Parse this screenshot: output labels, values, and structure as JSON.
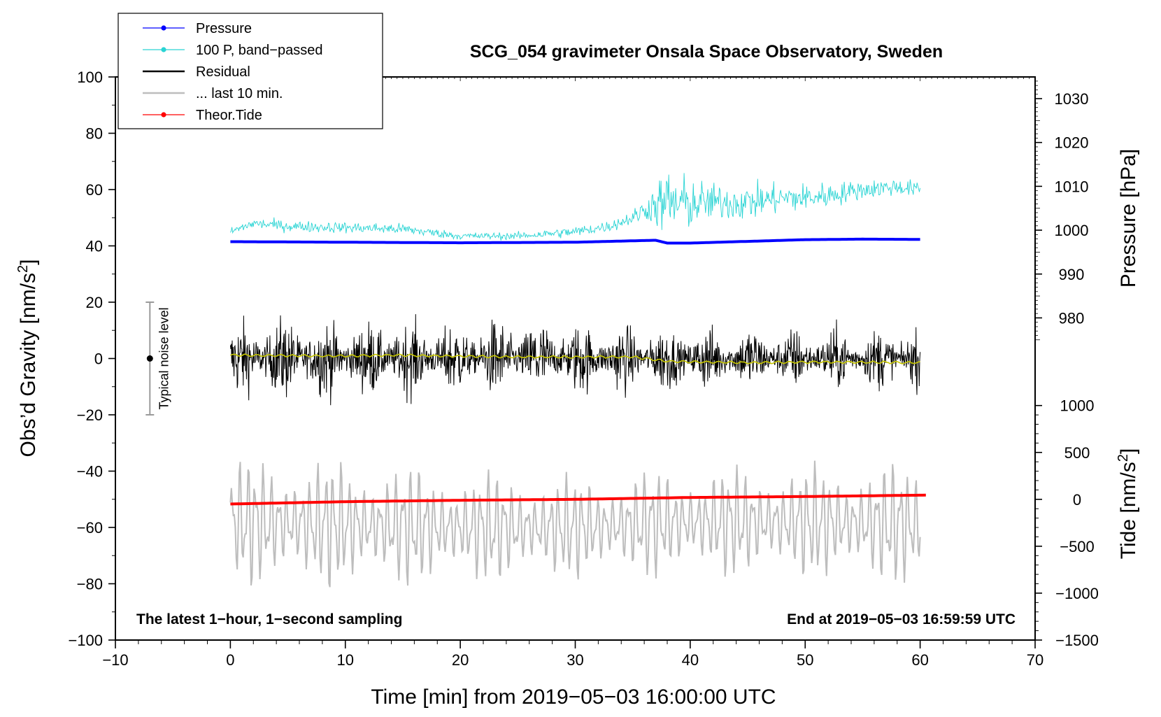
{
  "chart_data": {
    "type": "line",
    "title": "SCG_054 gravimeter Onsala Space Observatory, Sweden",
    "xlabel": "Time [min] from 2019−05−03 16:00:00 UTC",
    "xlim": [
      -10,
      70
    ],
    "xticks": [
      -10,
      0,
      10,
      20,
      30,
      40,
      50,
      60,
      70
    ],
    "xtick_labels": [
      "−10",
      "0",
      "10",
      "20",
      "30",
      "40",
      "50",
      "60",
      "70"
    ],
    "left_axis": {
      "label_main": "Obs’d Gravity [nm/s",
      "label_sup": "2",
      "label_end": "]",
      "ylim": [
        -100,
        100
      ],
      "ticks": [
        -100,
        -80,
        -60,
        -40,
        -20,
        0,
        20,
        40,
        60,
        80,
        100
      ],
      "tick_labels": [
        "−100",
        "−80",
        "−60",
        "−40",
        "−20",
        "0",
        "20",
        "40",
        "60",
        "80",
        "100"
      ]
    },
    "pressure_axis": {
      "label": "Pressure [hPa]",
      "unit_ref": [
        990,
        1030
      ],
      "gravity_ref": [
        30.0,
        92.3
      ],
      "ticks": [
        980,
        990,
        1000,
        1010,
        1020,
        1030
      ],
      "tick_labels": [
        "980",
        "990",
        "1000",
        "1010",
        "1020",
        "1030"
      ]
    },
    "tide_axis": {
      "label_main": "Tide [nm/s",
      "label_sup": "2",
      "label_end": "]",
      "unit_ref": [
        -1500,
        1000
      ],
      "gravity_ref": [
        -100,
        -16.7
      ],
      "ticks": [
        -1500,
        -1000,
        -500,
        0,
        500,
        1000
      ],
      "tick_labels": [
        "−1500",
        "−1000",
        "−500",
        "0",
        "500",
        "1000"
      ]
    },
    "legend": {
      "position": "top-left",
      "entries": [
        {
          "label": "Pressure",
          "color": "#0000ff",
          "style": "line-dot"
        },
        {
          "label": "100 P, band−passed",
          "color": "#2ad4d4",
          "style": "line-dot"
        },
        {
          "label": "Residual",
          "color": "#000000",
          "style": "line"
        },
        {
          "label": "... last 10 min.",
          "color": "#bdbdbd",
          "style": "line"
        },
        {
          "label": "Theor.Tide",
          "color": "#ff0000",
          "style": "line-dot"
        }
      ]
    },
    "noise_bar": {
      "label": "Typical noise level",
      "x": -7,
      "center": 0,
      "low": -20,
      "high": 20
    },
    "annotations": {
      "left": "The latest 1−hour, 1−second sampling",
      "right": "End at 2019−05−03 16:59:59 UTC"
    },
    "series": [
      {
        "name": "Pressure",
        "color": "#0000ff",
        "axis": "left",
        "x": [
          0,
          10,
          20,
          30,
          35,
          37,
          38,
          40,
          45,
          50,
          55,
          60
        ],
        "y": [
          41.5,
          41.3,
          41.1,
          41.3,
          41.8,
          42.0,
          41.0,
          41.0,
          41.6,
          42.2,
          42.4,
          42.3
        ]
      },
      {
        "name": "100 P, band−passed",
        "color": "#2ad4d4",
        "axis": "left",
        "x": [
          0,
          2,
          5,
          10,
          15,
          20,
          25,
          30,
          33,
          35,
          36.5,
          38,
          40,
          42,
          45,
          48,
          50,
          52,
          55,
          58,
          60
        ],
        "y": [
          45,
          48,
          47,
          46.5,
          46,
          43.5,
          43.5,
          45,
          47,
          50,
          54,
          55,
          55,
          55.5,
          55.5,
          57,
          57,
          58,
          60,
          61,
          60
        ],
        "envelope": [
          2,
          3,
          3,
          3,
          3,
          2,
          2,
          3,
          3,
          4,
          8,
          20,
          14,
          10,
          10,
          8,
          8,
          7,
          5,
          5,
          4
        ]
      },
      {
        "name": "Residual",
        "color": "#000000",
        "axis": "left",
        "x": [
          0,
          5,
          10,
          15,
          20,
          25,
          30,
          35,
          40,
          45,
          50,
          55,
          60
        ],
        "y": [
          0,
          0,
          0,
          0,
          0,
          0,
          0,
          0,
          0,
          0,
          0,
          0,
          0
        ],
        "envelope": [
          20,
          22,
          20,
          20,
          19,
          22,
          19,
          18,
          17,
          17,
          16,
          16,
          16
        ]
      },
      {
        "name": "Residual, smoothed",
        "color": "#c8c800",
        "axis": "left",
        "x": [
          0,
          5,
          10,
          15,
          20,
          25,
          30,
          35,
          38,
          40,
          45,
          50,
          55,
          60
        ],
        "y": [
          1.2,
          1.0,
          0.9,
          1.2,
          0.8,
          0.6,
          0.5,
          0.6,
          -1.0,
          -1.2,
          -1.5,
          -1.3,
          -1.3,
          -1.5
        ]
      },
      {
        "name": "... last 10 min.",
        "color": "#bdbdbd",
        "axis": "left",
        "x": [
          0,
          10,
          20,
          30,
          40,
          50,
          60
        ],
        "y": [
          -58,
          -59,
          -60,
          -60,
          -58,
          -58,
          -59
        ],
        "envelope": [
          25,
          25,
          22,
          20,
          21,
          22,
          24
        ]
      },
      {
        "name": "Theor.Tide",
        "color": "#ff0000",
        "axis": "tide",
        "x": [
          0,
          10,
          20,
          30,
          40,
          50,
          60.5
        ],
        "y": [
          -50,
          -25,
          -10,
          0,
          20,
          30,
          45
        ]
      }
    ]
  }
}
